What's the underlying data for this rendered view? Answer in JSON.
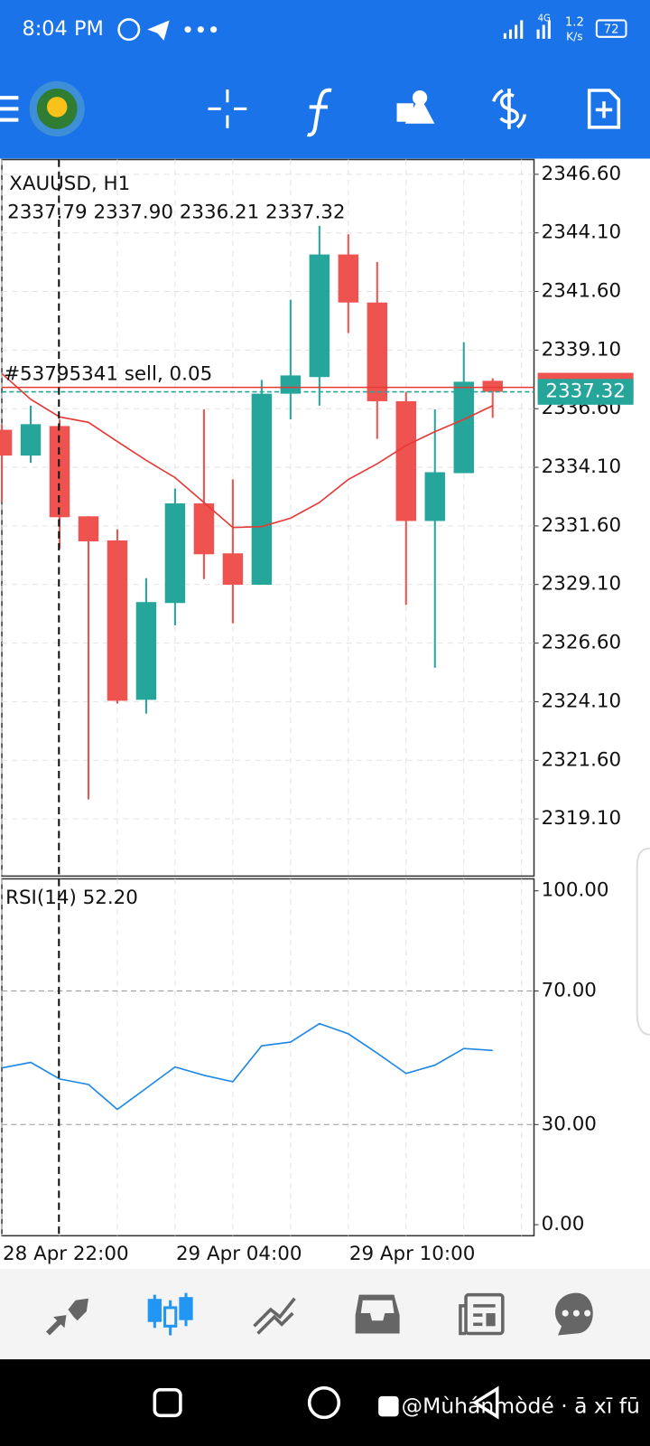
{
  "status": {
    "time": "8:04 PM",
    "network": "4G",
    "speed": "1.2",
    "speed_unit": "K/s",
    "battery": "72"
  },
  "chart_data": [
    {
      "type": "candlestick",
      "title": "XAUUSD, H1",
      "subtitle": "2337.79 2337.90 2336.21 2337.32",
      "categories": [
        "28 Apr 22:00",
        null,
        null,
        null,
        null,
        null,
        "29 Apr 04:00",
        null,
        null,
        null,
        null,
        null,
        "29 Apr 10:00",
        null,
        null,
        null,
        null,
        null
      ],
      "open": [
        2335.7,
        2334.6,
        2335.86,
        2332.01,
        2330.98,
        2324.18,
        2328.31,
        2332.56,
        2330.43,
        2329.09,
        2337.24,
        2337.95,
        2343.18,
        2341.13,
        2336.92,
        2331.81,
        2333.85,
        2337.79
      ],
      "high": [
        2335.94,
        2336.73,
        2336.14,
        2332.01,
        2331.45,
        2329.37,
        2333.19,
        2336.57,
        2333.58,
        2337.83,
        2341.25,
        2344.4,
        2344.04,
        2342.86,
        2337.32,
        2336.57,
        2339.44,
        2337.9
      ],
      "low": [
        2332.6,
        2334.29,
        2330.63,
        2319.93,
        2324.02,
        2323.59,
        2327.36,
        2329.33,
        2327.44,
        2329.09,
        2336.14,
        2336.73,
        2339.83,
        2335.31,
        2328.23,
        2325.55,
        2333.85,
        2336.21
      ],
      "close": [
        2334.6,
        2335.94,
        2331.97,
        2330.94,
        2324.14,
        2328.35,
        2332.56,
        2330.39,
        2329.09,
        2337.24,
        2338.02,
        2343.18,
        2341.13,
        2336.92,
        2331.81,
        2333.89,
        2337.75,
        2337.32
      ],
      "up_color": "#26a69a",
      "down_color": "#ef5350",
      "moving_average": {
        "color": "#e53935",
        "values": [
          2338.1,
          2337.0,
          2336.25,
          2336.02,
          2335.2,
          2334.4,
          2333.66,
          2332.6,
          2331.53,
          2331.57,
          2331.93,
          2332.6,
          2333.58,
          2334.25,
          2335.03,
          2335.62,
          2336.14,
          2336.73
        ]
      },
      "order_line": {
        "label": "#53795341 sell, 0.05",
        "value": 2337.51,
        "color": "#e53935"
      },
      "last_price": 2337.32,
      "ask_price": 2337.58,
      "ylim": [
        2316.66,
        2347.23
      ],
      "yticks": [
        {
          "value": 2346.6,
          "label": "2346.60"
        },
        {
          "value": 2344.1,
          "label": "2344.10"
        },
        {
          "value": 2341.6,
          "label": "2341.60"
        },
        {
          "value": 2339.1,
          "label": "2339.10"
        },
        {
          "value": 2336.6,
          "label": "2336.60"
        },
        {
          "value": 2334.1,
          "label": "2334.10"
        },
        {
          "value": 2331.6,
          "label": "2331.60"
        },
        {
          "value": 2329.1,
          "label": "2329.10"
        },
        {
          "value": 2326.6,
          "label": "2326.60"
        },
        {
          "value": 2324.1,
          "label": "2324.10"
        },
        {
          "value": 2321.6,
          "label": "2321.60"
        },
        {
          "value": 2319.1,
          "label": "2319.10"
        }
      ],
      "grid": true
    },
    {
      "type": "line",
      "title": "RSI(14) 52.20",
      "values": [
        46.96,
        48.62,
        43.65,
        41.99,
        34.53,
        40.88,
        47.24,
        44.75,
        42.82,
        53.59,
        54.7,
        60.22,
        57.18,
        51.38,
        45.3,
        47.79,
        52.76,
        52.2
      ],
      "color": "#1e88e5",
      "ylim": [
        -3.31,
        103.59
      ],
      "yticks": [
        {
          "value": 100,
          "label": "100.00"
        },
        {
          "value": 70,
          "label": "70.00"
        },
        {
          "value": 30,
          "label": "30.00"
        },
        {
          "value": 0,
          "label": "0.00"
        }
      ]
    }
  ],
  "watermark": "@Mùhánmòdé · ā xī fū"
}
